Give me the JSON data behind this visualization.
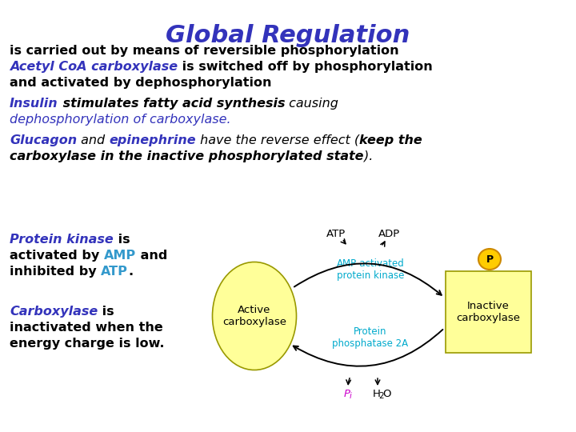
{
  "title": "Global Regulation",
  "title_color": "#3333bb",
  "title_fontsize": 22,
  "bg_color": "#ffffff",
  "line1": "is carried out by means of reversible phosphorylation",
  "line1_color": "#000000",
  "line1_fontsize": 11.5,
  "diagram": {
    "ellipse_color": "#ffff99",
    "ellipse_edge": "#999900",
    "rect_color": "#ffff99",
    "rect_edge": "#999900",
    "phospho_color": "#ffcc00",
    "phospho_edge": "#cc8800",
    "arrow_color": "#000000",
    "enzyme_label_color": "#00aacc",
    "pi_color": "#cc00cc",
    "h2o_color": "#000000",
    "atp_adp_color": "#000000",
    "active_label": "Active\ncarboxylase",
    "inactive_label": "Inactive\ncarboxylase",
    "kinase_label": "AMP-activated\nprotein kinase",
    "phosphatase_label": "Protein\nphosphatase 2A",
    "atp_label": "ATP",
    "adp_label": "ADP",
    "pi_label": "P",
    "pi_sub": "i",
    "h2o_label": "H",
    "h2o_sub": "2",
    "h2o_end": "O",
    "p_label": "P"
  }
}
